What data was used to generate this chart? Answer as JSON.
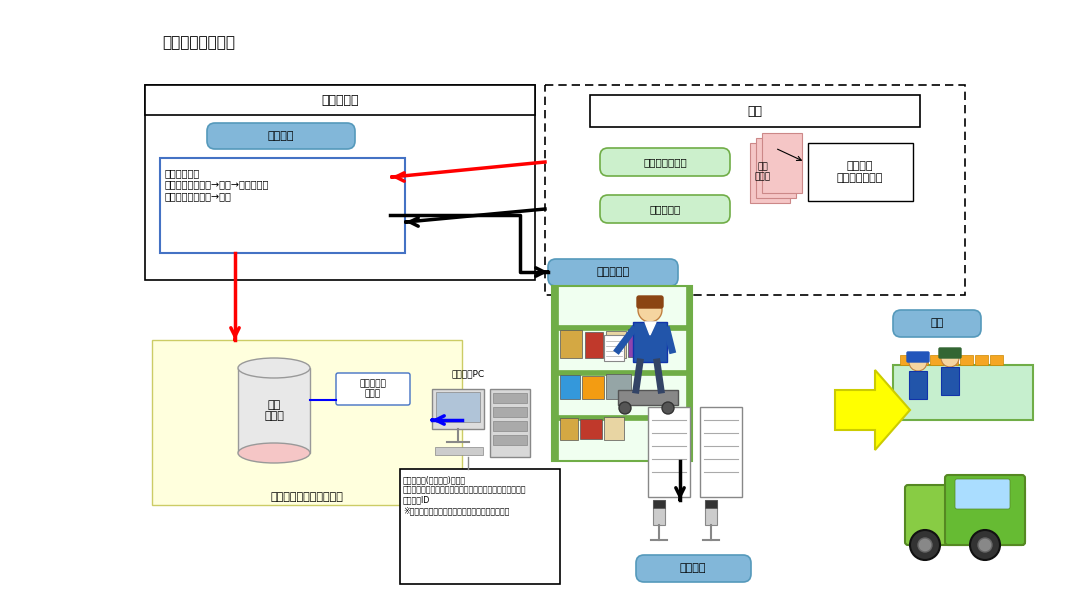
{
  "title": "検品システム構成",
  "bg_color": "#ffffff",
  "quicks_label": "クイックス",
  "daigaku_label": "大学",
  "madoguchi_label": "受付窓口",
  "sagyou_label": "【作業内容】\n出荷データ受取り→確認→サーバ登録\n教材リスト受取り→確認",
  "shukka_shiji_label": "出荷指示データ",
  "kyozai_list_label": "教材リスト",
  "gakuseki_label": "学籍番号\nバーコード印字",
  "kyozai_icon_label": "教材\nリスト",
  "picking_label": "ピッキング",
  "shukka_label": "出荷",
  "gyomu_label": "業務管理システムサーバ",
  "shukka_data_label": "出荷\nデータ",
  "torikomi_label": "出荷データ\n取込み",
  "senyo_pc_label": "専用管理PC",
  "log_label": "【出荷ログ(検品ログ)画面】\n日時／オペレーション／注文番号／学生番号／教材コード\n／作業者ID\n※ログ保管期間を汻め、過去データはアーカイブ",
  "kenhin_label": "検品作業",
  "blue_color": "#82b7d9",
  "light_blue": "#b8d4e8",
  "green_fill": "#ccf0cc",
  "green_border": "#70ad47",
  "yellow_bg": "#ffffdd",
  "pink_fill": "#f5c6c6"
}
